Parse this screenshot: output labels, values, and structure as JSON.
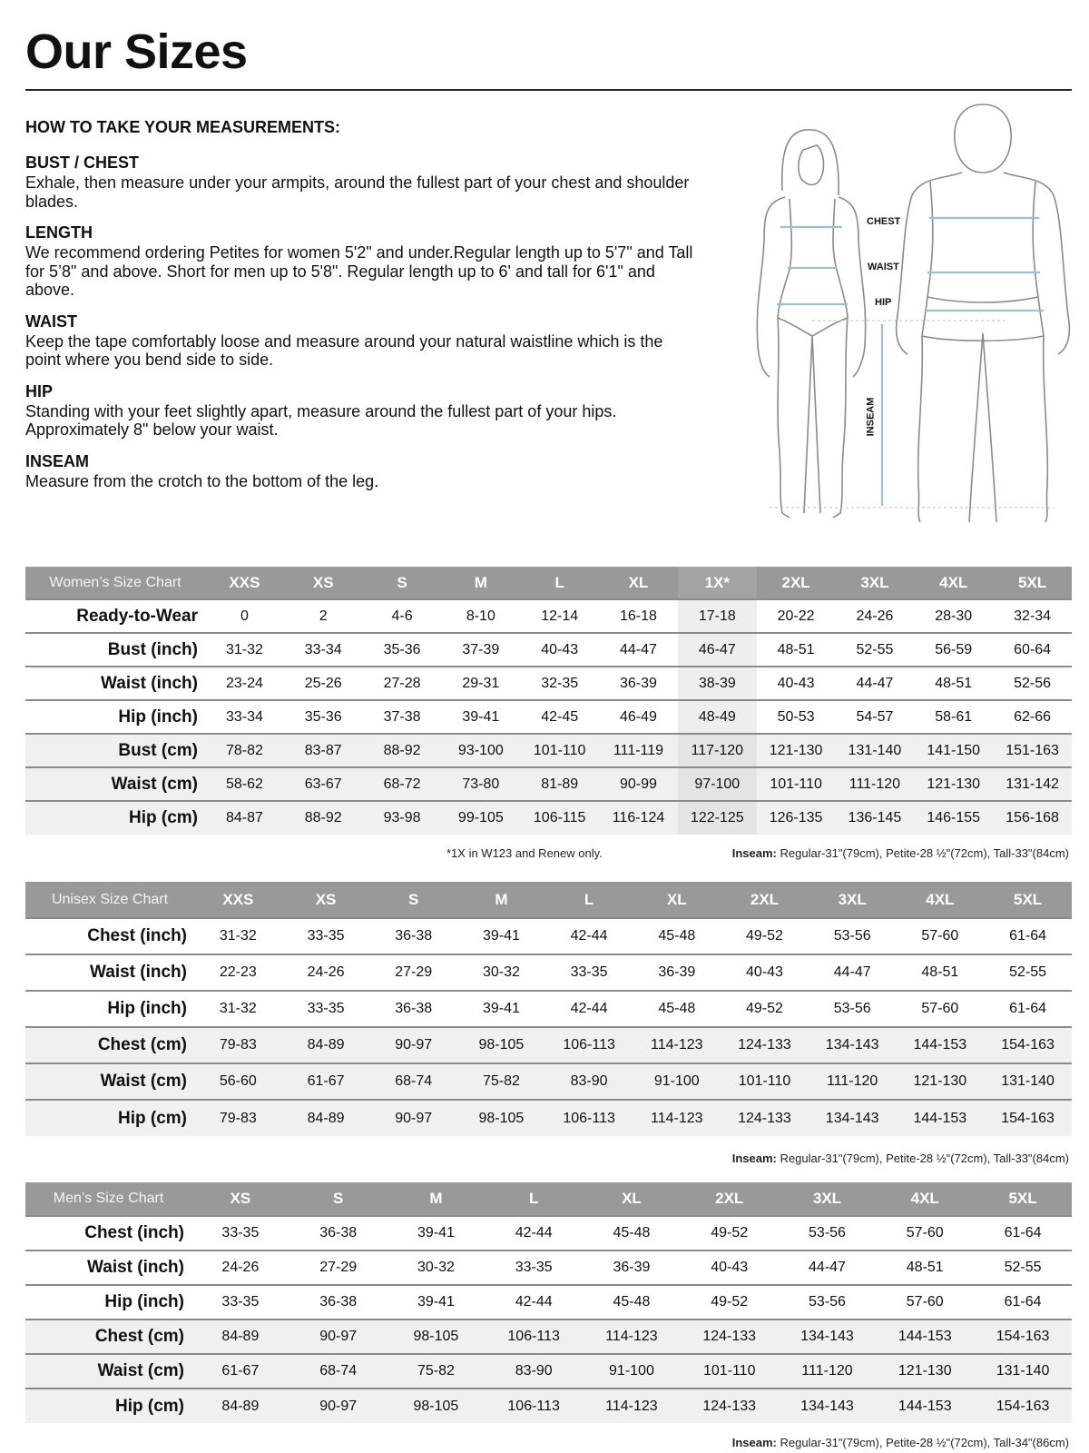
{
  "title": "Our Sizes",
  "howto": {
    "heading": "HOW TO TAKE YOUR MEASUREMENTS:",
    "sections": [
      {
        "title": "BUST / CHEST",
        "text": "Exhale, then measure under your armpits, around the fullest part of your chest and shoulder blades."
      },
      {
        "title": "LENGTH",
        "text": "We recommend ordering Petites for women 5'2\" and under.Regular length up to 5'7\" and Tall for 5’8\" and above. Short for men up to 5'8\". Regular length up to 6' and tall for 6'1\" and above."
      },
      {
        "title": "WAIST",
        "text": "Keep the tape comfortably loose and measure around your natural waistline which is the point where you bend side to side."
      },
      {
        "title": "HIP",
        "text": "Standing with your feet slightly apart, measure around the fullest part of your hips. Approximately 8\" below your waist."
      },
      {
        "title": "INSEAM",
        "text": "Measure from the crotch to the bottom of the leg."
      }
    ]
  },
  "figure": {
    "labels": {
      "chest": "CHEST",
      "waist": "WAIST",
      "hip": "HIP",
      "inseam": "INSEAM"
    },
    "measure_color": "#9dbfd0"
  },
  "colors": {
    "header_bg": "#999999",
    "shade": "#f0f0f0",
    "highlight": "#eeeeee"
  },
  "tables": [
    {
      "id": "women",
      "label": "Women’s Size Chart",
      "highlight_column": "1X*",
      "sizes": [
        "XXS",
        "XS",
        "S",
        "M",
        "L",
        "XL",
        "1X*",
        "2XL",
        "3XL",
        "4XL",
        "5XL"
      ],
      "rows": [
        {
          "label": "Ready-to-Wear",
          "values": [
            "0",
            "2",
            "4-6",
            "8-10",
            "12-14",
            "16-18",
            "17-18",
            "20-22",
            "24-26",
            "28-30",
            "32-34"
          ]
        },
        {
          "label": "Bust (inch)",
          "values": [
            "31-32",
            "33-34",
            "35-36",
            "37-39",
            "40-43",
            "44-47",
            "46-47",
            "48-51",
            "52-55",
            "56-59",
            "60-64"
          ]
        },
        {
          "label": "Waist (inch)",
          "values": [
            "23-24",
            "25-26",
            "27-28",
            "29-31",
            "32-35",
            "36-39",
            "38-39",
            "40-43",
            "44-47",
            "48-51",
            "52-56"
          ]
        },
        {
          "label": "Hip (inch)",
          "values": [
            "33-34",
            "35-36",
            "37-38",
            "39-41",
            "42-45",
            "46-49",
            "48-49",
            "50-53",
            "54-57",
            "58-61",
            "62-66"
          ]
        },
        {
          "label": "Bust (cm)",
          "values": [
            "78-82",
            "83-87",
            "88-92",
            "93-100",
            "101-110",
            "111-119",
            "117-120",
            "121-130",
            "131-140",
            "141-150",
            "151-163"
          ]
        },
        {
          "label": "Waist (cm)",
          "values": [
            "58-62",
            "63-67",
            "68-72",
            "73-80",
            "81-89",
            "90-99",
            "97-100",
            "101-110",
            "111-120",
            "121-130",
            "131-142"
          ]
        },
        {
          "label": "Hip (cm)",
          "values": [
            "84-87",
            "88-92",
            "93-98",
            "99-105",
            "106-115",
            "116-124",
            "122-125",
            "126-135",
            "136-145",
            "146-155",
            "156-168"
          ]
        }
      ],
      "footnote": "*1X in W123 and Renew only.",
      "inseam_label": "Inseam:",
      "inseam_text": " Regular-31\"(79cm), Petite-28 ½\"(72cm), Tall-33\"(84cm)"
    },
    {
      "id": "unisex",
      "label": "Unisex Size Chart",
      "sizes": [
        "XXS",
        "XS",
        "S",
        "M",
        "L",
        "XL",
        "2XL",
        "3XL",
        "4XL",
        "5XL"
      ],
      "rows": [
        {
          "label": "Chest (inch)",
          "values": [
            "31-32",
            "33-35",
            "36-38",
            "39-41",
            "42-44",
            "45-48",
            "49-52",
            "53-56",
            "57-60",
            "61-64"
          ]
        },
        {
          "label": "Waist (inch)",
          "values": [
            "22-23",
            "24-26",
            "27-29",
            "30-32",
            "33-35",
            "36-39",
            "40-43",
            "44-47",
            "48-51",
            "52-55"
          ]
        },
        {
          "label": "Hip (inch)",
          "values": [
            "31-32",
            "33-35",
            "36-38",
            "39-41",
            "42-44",
            "45-48",
            "49-52",
            "53-56",
            "57-60",
            "61-64"
          ]
        },
        {
          "label": "Chest (cm)",
          "values": [
            "79-83",
            "84-89",
            "90-97",
            "98-105",
            "106-113",
            "114-123",
            "124-133",
            "134-143",
            "144-153",
            "154-163"
          ]
        },
        {
          "label": "Waist (cm)",
          "values": [
            "56-60",
            "61-67",
            "68-74",
            "75-82",
            "83-90",
            "91-100",
            "101-110",
            "111-120",
            "121-130",
            "131-140"
          ]
        },
        {
          "label": "Hip (cm)",
          "values": [
            "79-83",
            "84-89",
            "90-97",
            "98-105",
            "106-113",
            "114-123",
            "124-133",
            "134-143",
            "144-153",
            "154-163"
          ]
        }
      ],
      "inseam_label": "Inseam:",
      "inseam_text": " Regular-31\"(79cm), Petite-28 ½\"(72cm), Tall-33\"(84cm)"
    },
    {
      "id": "men",
      "label": "Men’s Size Chart",
      "sizes": [
        "XS",
        "S",
        "M",
        "L",
        "XL",
        "2XL",
        "3XL",
        "4XL",
        "5XL"
      ],
      "rows": [
        {
          "label": "Chest (inch)",
          "values": [
            "33-35",
            "36-38",
            "39-41",
            "42-44",
            "45-48",
            "49-52",
            "53-56",
            "57-60",
            "61-64"
          ]
        },
        {
          "label": "Waist (inch)",
          "values": [
            "24-26",
            "27-29",
            "30-32",
            "33-35",
            "36-39",
            "40-43",
            "44-47",
            "48-51",
            "52-55"
          ]
        },
        {
          "label": "Hip (inch)",
          "values": [
            "33-35",
            "36-38",
            "39-41",
            "42-44",
            "45-48",
            "49-52",
            "53-56",
            "57-60",
            "61-64"
          ]
        },
        {
          "label": "Chest (cm)",
          "values": [
            "84-89",
            "90-97",
            "98-105",
            "106-113",
            "114-123",
            "124-133",
            "134-143",
            "144-153",
            "154-163"
          ]
        },
        {
          "label": "Waist (cm)",
          "values": [
            "61-67",
            "68-74",
            "75-82",
            "83-90",
            "91-100",
            "101-110",
            "111-120",
            "121-130",
            "131-140"
          ]
        },
        {
          "label": "Hip (cm)",
          "values": [
            "84-89",
            "90-97",
            "98-105",
            "106-113",
            "114-123",
            "124-133",
            "134-143",
            "144-153",
            "154-163"
          ]
        }
      ],
      "inseam_label": "Inseam:",
      "inseam_text": " Regular-31\"(79cm), Petite-28 ½\"(72cm), Tall-34\"(86cm)"
    }
  ]
}
